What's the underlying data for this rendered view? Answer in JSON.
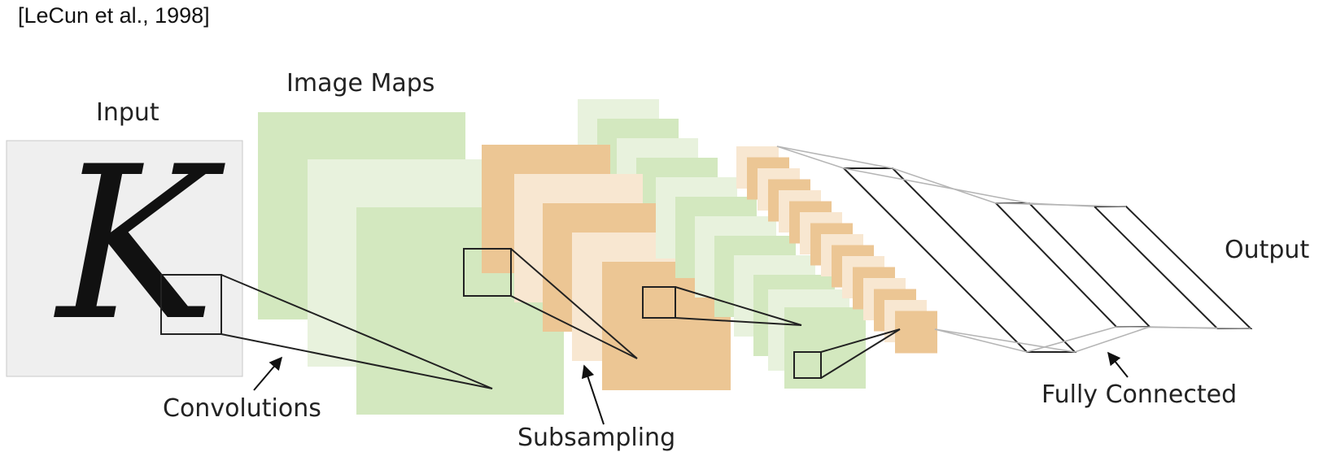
{
  "citation": "[LeCun et al., 1998]",
  "labels": {
    "input": "Input",
    "image_maps": "Image Maps",
    "output": "Output",
    "convolutions": "Convolutions",
    "subsampling": "Subsampling",
    "fully_connected": "Fully Connected"
  },
  "input_glyph": "K",
  "colors": {
    "input_bg": "#efefef",
    "green": "#d3e8bf",
    "light_green": "#e8f2dd",
    "orange": "#ecc694",
    "light_orange": "#f8e7d1",
    "line": "#222222",
    "grey_line": "#b5b5b5"
  }
}
